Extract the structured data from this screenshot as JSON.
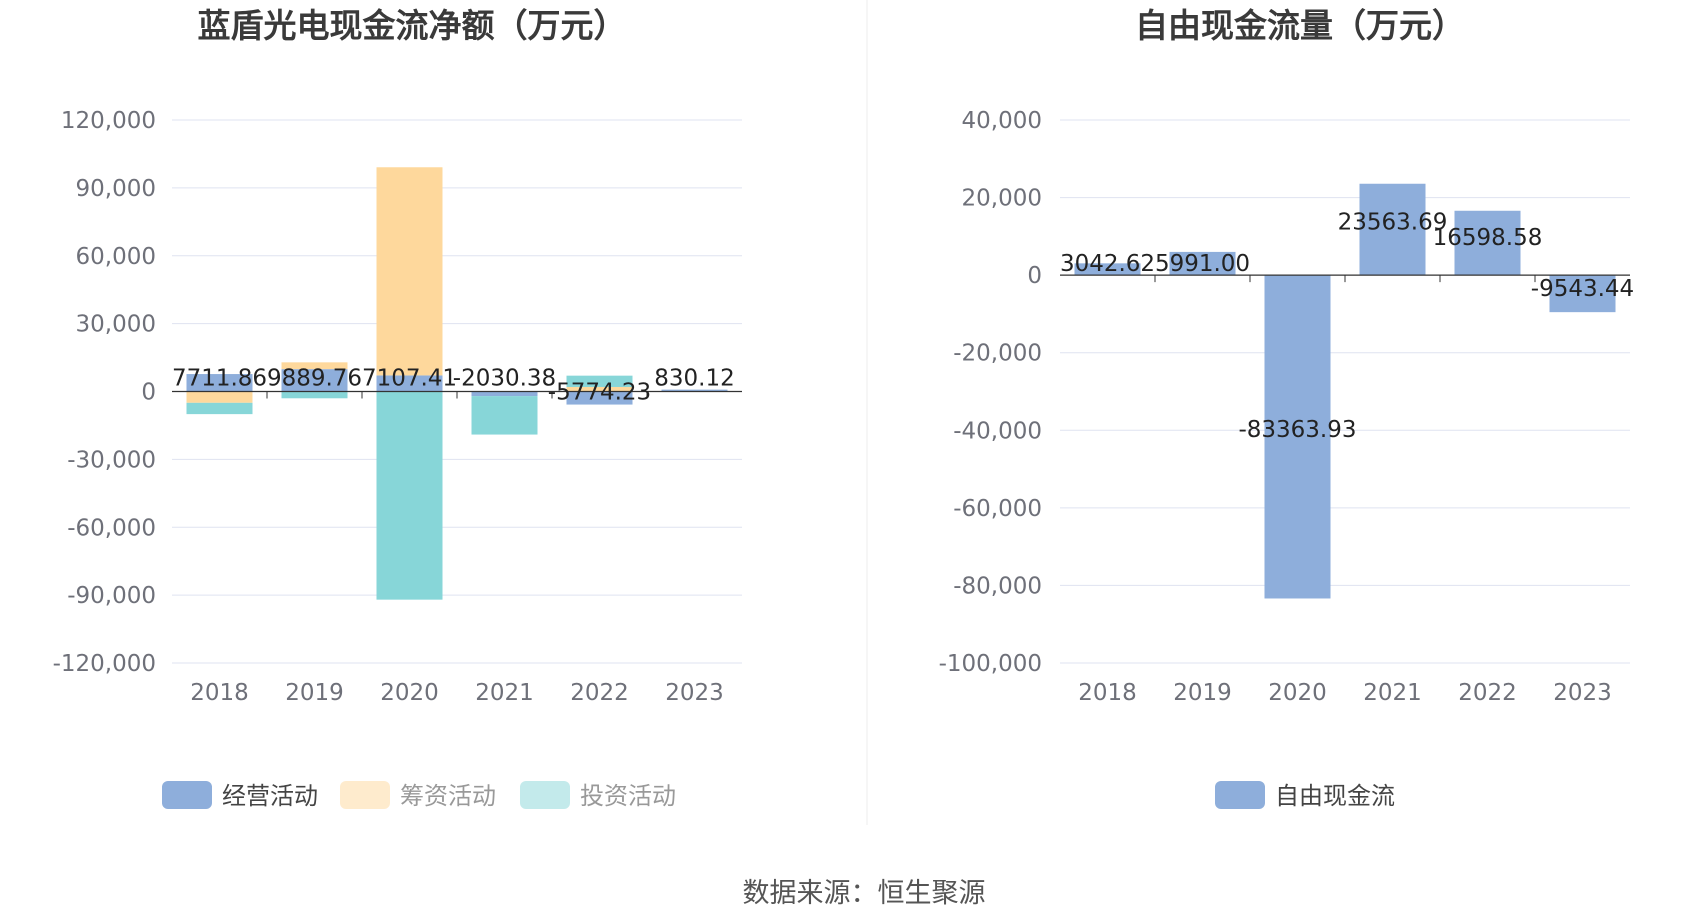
{
  "colors": {
    "operating": "#8eaedb",
    "financing": "#fed89c",
    "investing": "#87d6d8",
    "free_cash_flow": "#8eaedb",
    "grid": "#dfe3f0",
    "axis": "#333333"
  },
  "source": "数据来源：恒生聚源",
  "chart_data": [
    {
      "type": "bar",
      "stacked": true,
      "title": "蓝盾光电现金流净额（万元）",
      "categories": [
        "2018",
        "2019",
        "2020",
        "2021",
        "2022",
        "2023"
      ],
      "ylim": [
        -120000,
        120000
      ],
      "yticks": [
        120000,
        90000,
        60000,
        30000,
        0,
        -30000,
        -60000,
        -90000,
        -120000
      ],
      "ytick_labels": [
        "120,000",
        "90,000",
        "60,000",
        "30,000",
        "0",
        "-30,000",
        "-60,000",
        "-90,000",
        "-120,000"
      ],
      "grid": true,
      "legend_position": "bottom",
      "series": [
        {
          "name": "经营活动",
          "color": "#8eaedb",
          "values": [
            7711.86,
            9889.76,
            7107.41,
            -2030.38,
            -5774.23,
            830.12
          ]
        },
        {
          "name": "筹资活动",
          "color": "#fed89c",
          "values": [
            -5000,
            3000,
            92000,
            0,
            2000,
            0
          ]
        },
        {
          "name": "投资活动",
          "color": "#87d6d8",
          "values": [
            -5000,
            -3000,
            -92000,
            -17000,
            5000,
            0
          ]
        }
      ],
      "data_labels": [
        "7711.86",
        "9889.76",
        "7107.41",
        "-2030.38",
        "-5774.23",
        "830.12"
      ],
      "legend_inactive": [
        "筹资活动",
        "投资活动"
      ]
    },
    {
      "type": "bar",
      "title": "自由现金流量（万元）",
      "categories": [
        "2018",
        "2019",
        "2020",
        "2021",
        "2022",
        "2023"
      ],
      "ylim": [
        -100000,
        40000
      ],
      "yticks": [
        40000,
        20000,
        0,
        -20000,
        -40000,
        -60000,
        -80000,
        -100000
      ],
      "ytick_labels": [
        "40,000",
        "20,000",
        "0",
        "-20,000",
        "-40,000",
        "-60,000",
        "-80,000",
        "-100,000"
      ],
      "grid": true,
      "legend_position": "bottom",
      "series": [
        {
          "name": "自由现金流",
          "color": "#8eaedb",
          "values": [
            3042.62,
            5991.0,
            -83363.93,
            23563.69,
            16598.58,
            -9543.44
          ]
        }
      ],
      "data_labels": [
        "3042.62",
        "5991.00",
        "-83363.93",
        "23563.69",
        "16598.58",
        "-9543.44"
      ]
    }
  ]
}
